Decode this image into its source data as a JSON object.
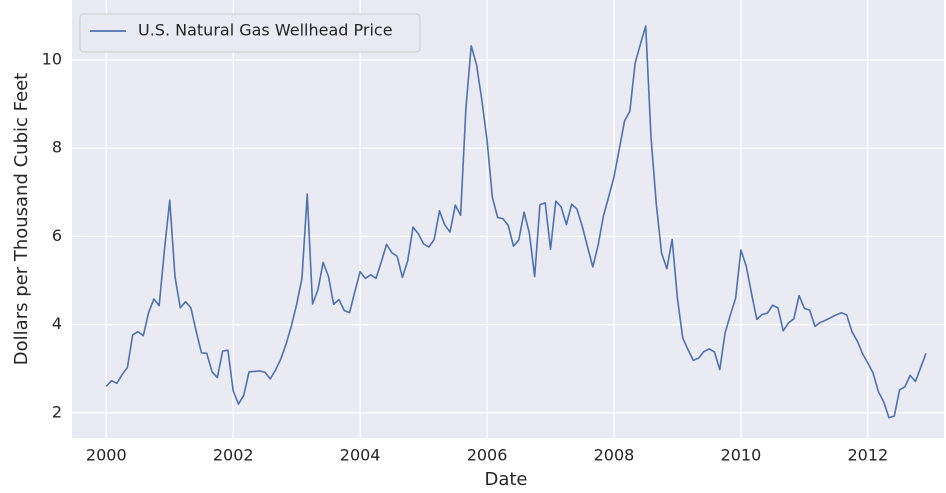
{
  "chart_data": {
    "type": "line",
    "xlabel": "Date",
    "ylabel": "Dollars per Thousand Cubic Feet",
    "x": [
      "2000-01",
      "2000-02",
      "2000-03",
      "2000-04",
      "2000-05",
      "2000-06",
      "2000-07",
      "2000-08",
      "2000-09",
      "2000-10",
      "2000-11",
      "2000-12",
      "2001-01",
      "2001-02",
      "2001-03",
      "2001-04",
      "2001-05",
      "2001-06",
      "2001-07",
      "2001-08",
      "2001-09",
      "2001-10",
      "2001-11",
      "2001-12",
      "2002-01",
      "2002-02",
      "2002-03",
      "2002-04",
      "2002-05",
      "2002-06",
      "2002-07",
      "2002-08",
      "2002-09",
      "2002-10",
      "2002-11",
      "2002-12",
      "2003-01",
      "2003-02",
      "2003-03",
      "2003-04",
      "2003-05",
      "2003-06",
      "2003-07",
      "2003-08",
      "2003-09",
      "2003-10",
      "2003-11",
      "2003-12",
      "2004-01",
      "2004-02",
      "2004-03",
      "2004-04",
      "2004-05",
      "2004-06",
      "2004-07",
      "2004-08",
      "2004-09",
      "2004-10",
      "2004-11",
      "2004-12",
      "2005-01",
      "2005-02",
      "2005-03",
      "2005-04",
      "2005-05",
      "2005-06",
      "2005-07",
      "2005-08",
      "2005-09",
      "2005-10",
      "2005-11",
      "2005-12",
      "2006-01",
      "2006-02",
      "2006-03",
      "2006-04",
      "2006-05",
      "2006-06",
      "2006-07",
      "2006-08",
      "2006-09",
      "2006-10",
      "2006-11",
      "2006-12",
      "2007-01",
      "2007-02",
      "2007-03",
      "2007-04",
      "2007-05",
      "2007-06",
      "2007-07",
      "2007-08",
      "2007-09",
      "2007-10",
      "2007-11",
      "2007-12",
      "2008-01",
      "2008-02",
      "2008-03",
      "2008-04",
      "2008-05",
      "2008-06",
      "2008-07",
      "2008-08",
      "2008-09",
      "2008-10",
      "2008-11",
      "2008-12",
      "2009-01",
      "2009-02",
      "2009-03",
      "2009-04",
      "2009-05",
      "2009-06",
      "2009-07",
      "2009-08",
      "2009-09",
      "2009-10",
      "2009-11",
      "2009-12",
      "2010-01",
      "2010-02",
      "2010-03",
      "2010-04",
      "2010-05",
      "2010-06",
      "2010-07",
      "2010-08",
      "2010-09",
      "2010-10",
      "2010-11",
      "2010-12",
      "2011-01",
      "2011-02",
      "2011-03",
      "2011-04",
      "2011-05",
      "2011-06",
      "2011-07",
      "2011-08",
      "2011-09",
      "2011-10",
      "2011-11",
      "2011-12",
      "2012-01",
      "2012-02",
      "2012-03",
      "2012-04",
      "2012-05",
      "2012-06",
      "2012-07",
      "2012-08",
      "2012-09",
      "2012-10",
      "2012-11",
      "2012-12"
    ],
    "series": [
      {
        "name": "U.S. Natural Gas Wellhead Price",
        "color": "#4c72b0",
        "values": [
          2.6,
          2.73,
          2.67,
          2.87,
          3.03,
          3.77,
          3.84,
          3.75,
          4.27,
          4.58,
          4.43,
          5.7,
          6.82,
          5.08,
          4.38,
          4.52,
          4.38,
          3.85,
          3.36,
          3.35,
          2.93,
          2.8,
          3.4,
          3.42,
          2.5,
          2.2,
          2.4,
          2.93,
          2.94,
          2.95,
          2.92,
          2.77,
          2.97,
          3.22,
          3.56,
          3.97,
          4.46,
          5.05,
          6.96,
          4.47,
          4.78,
          5.41,
          5.1,
          4.46,
          4.57,
          4.32,
          4.27,
          4.75,
          5.2,
          5.05,
          5.13,
          5.05,
          5.42,
          5.82,
          5.63,
          5.55,
          5.07,
          5.45,
          6.21,
          6.06,
          5.83,
          5.76,
          5.93,
          6.58,
          6.26,
          6.1,
          6.71,
          6.48,
          8.9,
          10.32,
          9.9,
          9.1,
          8.18,
          6.89,
          6.43,
          6.4,
          6.25,
          5.78,
          5.92,
          6.55,
          6.07,
          5.09,
          6.72,
          6.76,
          5.71,
          6.8,
          6.67,
          6.27,
          6.73,
          6.62,
          6.23,
          5.76,
          5.31,
          5.8,
          6.46,
          6.9,
          7.35,
          7.98,
          8.62,
          8.84,
          9.93,
          10.36,
          10.77,
          8.25,
          6.73,
          5.62,
          5.27,
          5.93,
          4.59,
          3.7,
          3.43,
          3.19,
          3.24,
          3.39,
          3.45,
          3.38,
          2.98,
          3.81,
          4.22,
          4.6,
          5.69,
          5.33,
          4.71,
          4.12,
          4.23,
          4.26,
          4.44,
          4.38,
          3.86,
          4.04,
          4.13,
          4.66,
          4.37,
          4.33,
          3.96,
          4.05,
          4.1,
          4.16,
          4.22,
          4.27,
          4.22,
          3.84,
          3.63,
          3.34,
          3.13,
          2.9,
          2.48,
          2.25,
          1.89,
          1.93,
          2.52,
          2.59,
          2.85,
          2.71,
          3.03,
          3.35
        ]
      }
    ],
    "xlim": [
      1999.46,
      2013.2
    ],
    "xticks": [
      2000,
      2002,
      2004,
      2006,
      2008,
      2010,
      2012
    ],
    "ylim": [
      1.43,
      11.36
    ],
    "yticks": [
      2,
      4,
      6,
      8,
      10
    ],
    "grid": true,
    "legend": "upper left"
  }
}
